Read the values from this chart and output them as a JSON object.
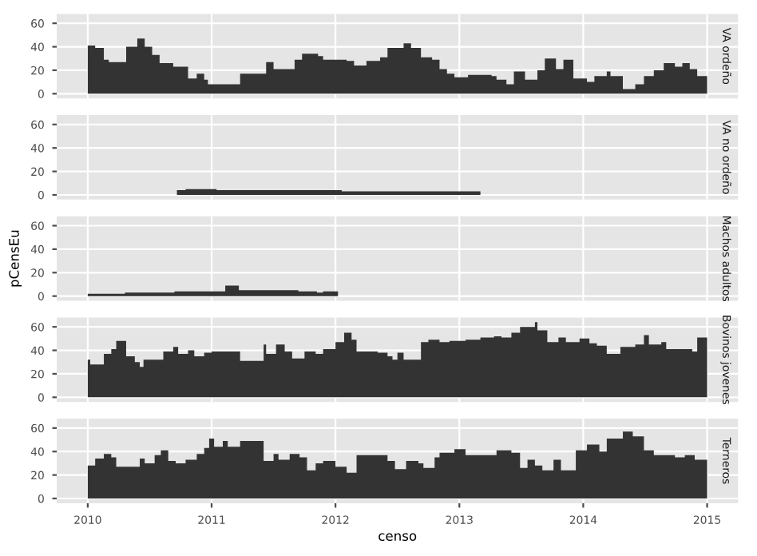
{
  "chart_data": [
    {
      "type": "area",
      "title": "VA ordeño",
      "color": "#333333",
      "xlim": [
        2009.75,
        2015.25
      ],
      "xticks": [
        2010,
        2011,
        2012,
        2013,
        2014,
        2015
      ],
      "ylim": [
        -4,
        68
      ],
      "yticks": [
        0,
        20,
        40,
        60
      ],
      "grid": true,
      "tick_labels": "y",
      "x": [
        2010.0,
        2010.06,
        2010.13,
        2010.17,
        2010.29,
        2010.31,
        2010.4,
        2010.46,
        2010.52,
        2010.58,
        2010.69,
        2010.81,
        2010.88,
        2010.94,
        2010.97,
        2011.21,
        2011.23,
        2011.42,
        2011.44,
        2011.5,
        2011.57,
        2011.67,
        2011.73,
        2011.86,
        2011.9,
        2012.0,
        2012.09,
        2012.15,
        2012.25,
        2012.36,
        2012.42,
        2012.55,
        2012.61,
        2012.69,
        2012.78,
        2012.84,
        2012.9,
        2012.96,
        2013.07,
        2013.26,
        2013.3,
        2013.38,
        2013.44,
        2013.53,
        2013.63,
        2013.69,
        2013.78,
        2013.84,
        2013.92,
        2014.03,
        2014.09,
        2014.19,
        2014.22,
        2014.32,
        2014.42,
        2014.49,
        2014.57,
        2014.65,
        2014.74,
        2014.8,
        2014.86,
        2014.92,
        2015.0
      ],
      "values": [
        41,
        39,
        29,
        27,
        27,
        40,
        47,
        40,
        33,
        26,
        23,
        13,
        17,
        12,
        8,
        8,
        17,
        17,
        27,
        21,
        21,
        29,
        34,
        32,
        29,
        29,
        28,
        24,
        28,
        31,
        39,
        43,
        39,
        31,
        29,
        21,
        17,
        14,
        16,
        15,
        12,
        8,
        19,
        12,
        20,
        30,
        21,
        29,
        13,
        10,
        15,
        19,
        15,
        4,
        8,
        15,
        20,
        26,
        23,
        26,
        21,
        15,
        11
      ]
    },
    {
      "type": "area",
      "title": "VA no ordeño",
      "color": "#333333",
      "xlim": [
        2009.75,
        2015.25
      ],
      "xticks": [
        2010,
        2011,
        2012,
        2013,
        2014,
        2015
      ],
      "ylim": [
        -4,
        68
      ],
      "yticks": [
        0,
        20,
        40,
        60
      ],
      "grid": true,
      "tick_labels": "y",
      "x": [
        2010.72,
        2010.79,
        2011.04,
        2012.05,
        2013.17
      ],
      "values": [
        4,
        5,
        4,
        3,
        3
      ]
    },
    {
      "type": "area",
      "title": "Machos adultos",
      "ylabel": "pCensEu",
      "color": "#333333",
      "xlim": [
        2009.75,
        2015.25
      ],
      "xticks": [
        2010,
        2011,
        2012,
        2013,
        2014,
        2015
      ],
      "ylim": [
        -4,
        68
      ],
      "yticks": [
        0,
        20,
        40,
        60
      ],
      "grid": true,
      "tick_labels": "y",
      "x": [
        2010.0,
        2010.3,
        2010.7,
        2011.1,
        2011.11,
        2011.22,
        2011.7,
        2011.85,
        2011.9,
        2012.02
      ],
      "values": [
        2,
        3,
        4,
        4,
        9,
        5,
        4,
        3,
        4,
        4
      ]
    },
    {
      "type": "area",
      "title": "Bovinos jovenes",
      "color": "#333333",
      "xlim": [
        2009.75,
        2015.25
      ],
      "xticks": [
        2010,
        2011,
        2012,
        2013,
        2014,
        2015
      ],
      "ylim": [
        -4,
        68
      ],
      "yticks": [
        0,
        20,
        40,
        60
      ],
      "grid": true,
      "tick_labels": "y",
      "x": [
        2010.0,
        2010.02,
        2010.08,
        2010.13,
        2010.19,
        2010.23,
        2010.3,
        2010.31,
        2010.38,
        2010.42,
        2010.45,
        2010.54,
        2010.61,
        2010.69,
        2010.73,
        2010.81,
        2010.86,
        2010.94,
        2011.0,
        2011.21,
        2011.23,
        2011.36,
        2011.42,
        2011.44,
        2011.52,
        2011.59,
        2011.65,
        2011.75,
        2011.84,
        2011.9,
        2012.0,
        2012.07,
        2012.13,
        2012.17,
        2012.34,
        2012.42,
        2012.46,
        2012.5,
        2012.55,
        2012.67,
        2012.69,
        2012.75,
        2012.84,
        2012.92,
        2013.05,
        2013.17,
        2013.28,
        2013.34,
        2013.42,
        2013.49,
        2013.61,
        2013.63,
        2013.71,
        2013.8,
        2013.86,
        2013.97,
        2014.05,
        2014.11,
        2014.19,
        2014.3,
        2014.42,
        2014.49,
        2014.53,
        2014.63,
        2014.67,
        2014.88,
        2014.92,
        2015.0
      ],
      "values": [
        32,
        28,
        28,
        37,
        41,
        48,
        48,
        35,
        30,
        26,
        32,
        32,
        39,
        43,
        37,
        40,
        35,
        38,
        39,
        39,
        31,
        31,
        45,
        37,
        45,
        39,
        33,
        39,
        37,
        41,
        47,
        55,
        49,
        39,
        38,
        35,
        32,
        38,
        32,
        32,
        47,
        49,
        47,
        48,
        49,
        51,
        52,
        51,
        55,
        60,
        64,
        57,
        47,
        51,
        47,
        50,
        46,
        44,
        37,
        43,
        45,
        53,
        45,
        47,
        41,
        39,
        51,
        58
      ]
    },
    {
      "type": "area",
      "title": "Terneros",
      "xlabel": "censo",
      "color": "#333333",
      "xlim": [
        2009.75,
        2015.25
      ],
      "xticks": [
        2010,
        2011,
        2012,
        2013,
        2014,
        2015
      ],
      "ylim": [
        -4,
        68
      ],
      "yticks": [
        0,
        20,
        40,
        60
      ],
      "grid": true,
      "x": [
        2010.0,
        2010.06,
        2010.13,
        2010.19,
        2010.23,
        2010.4,
        2010.42,
        2010.46,
        2010.54,
        2010.59,
        2010.65,
        2010.71,
        2010.79,
        2010.88,
        2010.94,
        2010.98,
        2011.02,
        2011.09,
        2011.13,
        2011.23,
        2011.36,
        2011.42,
        2011.5,
        2011.54,
        2011.63,
        2011.71,
        2011.77,
        2011.84,
        2011.9,
        2012.0,
        2012.09,
        2012.15,
        2012.17,
        2012.34,
        2012.42,
        2012.48,
        2012.57,
        2012.67,
        2012.71,
        2012.8,
        2012.84,
        2012.96,
        2013.05,
        2013.17,
        2013.3,
        2013.42,
        2013.49,
        2013.55,
        2013.61,
        2013.67,
        2013.76,
        2013.82,
        2013.9,
        2013.94,
        2014.03,
        2014.09,
        2014.13,
        2014.19,
        2014.28,
        2014.32,
        2014.4,
        2014.49,
        2014.57,
        2014.65,
        2014.74,
        2014.82,
        2014.9,
        2015.0
      ],
      "values": [
        28,
        34,
        38,
        35,
        27,
        27,
        34,
        30,
        37,
        41,
        32,
        30,
        33,
        38,
        43,
        51,
        44,
        49,
        44,
        49,
        49,
        32,
        38,
        33,
        38,
        35,
        24,
        30,
        32,
        27,
        22,
        22,
        37,
        37,
        32,
        25,
        32,
        30,
        26,
        35,
        39,
        42,
        37,
        37,
        41,
        39,
        26,
        33,
        28,
        24,
        33,
        24,
        24,
        41,
        46,
        46,
        40,
        51,
        51,
        57,
        53,
        41,
        37,
        37,
        35,
        37,
        33,
        32
      ]
    }
  ]
}
